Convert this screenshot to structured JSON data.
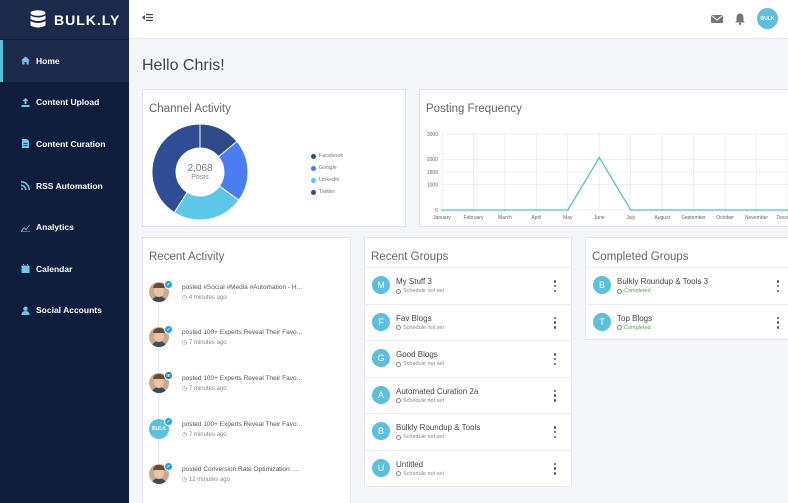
{
  "app": {
    "logo_text": "BULK.LY"
  },
  "sidebar": {
    "items": [
      {
        "label": "Home",
        "icon": "home-icon",
        "active": true
      },
      {
        "label": "Content Upload",
        "icon": "upload-icon",
        "active": false
      },
      {
        "label": "Content Curation",
        "icon": "document-icon",
        "active": false
      },
      {
        "label": "RSS Automation",
        "icon": "rss-icon",
        "active": false
      },
      {
        "label": "Analytics",
        "icon": "chart-line-icon",
        "active": false
      },
      {
        "label": "Calendar",
        "icon": "calendar-icon",
        "active": false
      },
      {
        "label": "Social Accounts",
        "icon": "user-icon",
        "active": false
      }
    ]
  },
  "topbar": {
    "toggle_glyph": "⇤☰",
    "avatar_text": "BULK"
  },
  "greeting": "Hello Chris!",
  "channel_activity": {
    "title": "Channel Activity",
    "total": "2,068",
    "total_label": "Posts",
    "legend": [
      "Facebook",
      "Google",
      "Linkedin",
      "Twitter"
    ]
  },
  "posting_frequency": {
    "title": "Posting Frequency"
  },
  "chart_data": [
    {
      "type": "pie",
      "title": "Channel Activity",
      "categories": [
        "Facebook",
        "Google",
        "Linkedin",
        "Twitter"
      ],
      "values": [
        14,
        21,
        24,
        41
      ],
      "colors": [
        "#2e4a87",
        "#4a7df0",
        "#5bc8e8",
        "#2f4d94"
      ],
      "center_label": "2,068 Posts"
    },
    {
      "type": "line",
      "title": "Posting Frequency",
      "x": [
        "January",
        "February",
        "March",
        "April",
        "May",
        "June",
        "July",
        "August",
        "September",
        "October",
        "November",
        "December"
      ],
      "values": [
        0,
        0,
        0,
        0,
        0,
        2068,
        0,
        0,
        0,
        0,
        0,
        0
      ],
      "ylim": [
        0,
        3000
      ],
      "yticks": [
        0,
        1000,
        1500,
        2000,
        3000
      ],
      "grid": true,
      "color": "#5bc0c8"
    }
  ],
  "recent_activity": {
    "title": "Recent Activity",
    "items": [
      {
        "text": "posted #Social #Media #Automation - H...",
        "time": "4 minutes ago",
        "badge": "t",
        "brand": false
      },
      {
        "text": "posted 100+ Experts Reveal Their Favo...",
        "time": "7 minutes ago",
        "badge": "t",
        "brand": false
      },
      {
        "text": "posted 100+ Experts Reveal Their Favo...",
        "time": "7 minutes ago",
        "badge": "in",
        "brand": false
      },
      {
        "text": "posted 100+ Experts Reveal Their Favo...",
        "time": "7 minutes ago",
        "badge": "t",
        "brand": true
      },
      {
        "text": "posted Conversion Rate Optimization: ...",
        "time": "12 minutes ago",
        "badge": "t",
        "brand": false
      }
    ]
  },
  "recent_groups": {
    "title": "Recent Groups",
    "items": [
      {
        "letter": "M",
        "name": "My Stuff 3",
        "status": "Schedule not set"
      },
      {
        "letter": "F",
        "name": "Fav Blogs",
        "status": "Schedule not set"
      },
      {
        "letter": "G",
        "name": "Good Blogs",
        "status": "Schedule not set"
      },
      {
        "letter": "A",
        "name": "Automated Curation 2a",
        "status": "Schedule not set"
      },
      {
        "letter": "B",
        "name": "Bulkly Roundup & Tools",
        "status": "Schedule not set"
      },
      {
        "letter": "U",
        "name": "Untitled",
        "status": "Schedule not set"
      }
    ]
  },
  "completed_groups": {
    "title": "Completed Groups",
    "items": [
      {
        "letter": "B",
        "name": "Bulkly Roundup & Tools 3",
        "status": "Completed"
      },
      {
        "letter": "T",
        "name": "Top Blogs",
        "status": "Completed"
      }
    ]
  },
  "colors": {
    "sidebar_bg": "#0f1e3c",
    "accent": "#5bc0de",
    "completed": "#4cae4c"
  }
}
